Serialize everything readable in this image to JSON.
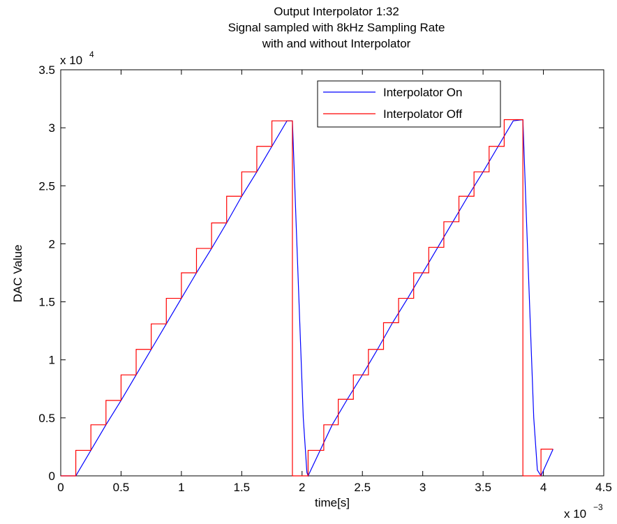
{
  "chart_data": {
    "type": "line",
    "title": [
      "Output Interpolator 1:32",
      "Signal sampled with 8kHz Sampling Rate",
      "with and without Interpolator"
    ],
    "xlabel": "time[s]",
    "ylabel": "DAC Value",
    "x_multiplier": "x 10",
    "x_multiplier_exp": "−3",
    "y_multiplier": "x 10",
    "y_multiplier_exp": "4",
    "x_scale": 0.001,
    "y_scale": 10000,
    "xlim": [
      0,
      0.0045
    ],
    "ylim": [
      0,
      35000
    ],
    "xticks": [
      0,
      0.0005,
      0.001,
      0.0015,
      0.002,
      0.0025,
      0.003,
      0.0035,
      0.004,
      0.0045
    ],
    "xtick_labels": [
      "0",
      "0.5",
      "1",
      "1.5",
      "2",
      "2.5",
      "3",
      "3.5",
      "4",
      "4.5"
    ],
    "yticks": [
      0,
      5000,
      10000,
      15000,
      20000,
      25000,
      30000,
      35000
    ],
    "ytick_labels": [
      "0",
      "0.5",
      "1",
      "1.5",
      "2",
      "2.5",
      "3",
      "3.5"
    ],
    "grid": false,
    "legend_position": "top-right",
    "series": [
      {
        "name": "Interpolator On",
        "color": "#0000ff",
        "x": [
          0,
          0.000125,
          0.00025,
          0.000375,
          0.0005,
          0.000625,
          0.00075,
          0.000875,
          0.001,
          0.001125,
          0.00125,
          0.001375,
          0.0015,
          0.001625,
          0.00175,
          0.001875,
          0.00192,
          0.00195,
          0.00198,
          0.00201,
          0.00204,
          0.00205,
          0.00215,
          0.00225,
          0.002375,
          0.0025,
          0.002625,
          0.00275,
          0.002875,
          0.003,
          0.003125,
          0.00325,
          0.003375,
          0.0035,
          0.003625,
          0.00375,
          0.00383,
          0.00386,
          0.00389,
          0.00392,
          0.00395,
          0.00398,
          0.00408
        ],
        "y": [
          0,
          0,
          2200,
          4400,
          6500,
          8700,
          10900,
          13100,
          15300,
          17500,
          19600,
          21800,
          24100,
          26200,
          28400,
          30600,
          30600,
          22000,
          13500,
          5000,
          300,
          0,
          2200,
          4400,
          6600,
          8700,
          10900,
          13200,
          15300,
          17500,
          19700,
          21900,
          24100,
          26200,
          28400,
          30600,
          30700,
          22000,
          13500,
          5000,
          500,
          0,
          2300
        ]
      },
      {
        "name": "Interpolator Off",
        "color": "#ff0000",
        "x": [
          0,
          0.000125,
          0.00025,
          0.000375,
          0.0005,
          0.000625,
          0.00075,
          0.000875,
          0.001,
          0.001125,
          0.00125,
          0.001375,
          0.0015,
          0.001625,
          0.00175,
          0.00192,
          0.00205,
          0.00218,
          0.0023,
          0.002425,
          0.00255,
          0.002675,
          0.0028,
          0.002925,
          0.00305,
          0.003175,
          0.0033,
          0.003425,
          0.00355,
          0.003675,
          0.00383,
          0.00398,
          0.00408
        ],
        "y": [
          0,
          2200,
          4400,
          6500,
          8700,
          10900,
          13100,
          15300,
          17500,
          19600,
          21800,
          24100,
          26200,
          28400,
          30600,
          0,
          2200,
          4400,
          6600,
          8700,
          10900,
          13200,
          15300,
          17500,
          19700,
          21900,
          24100,
          26200,
          28400,
          30700,
          0,
          2300,
          2300
        ]
      }
    ]
  }
}
